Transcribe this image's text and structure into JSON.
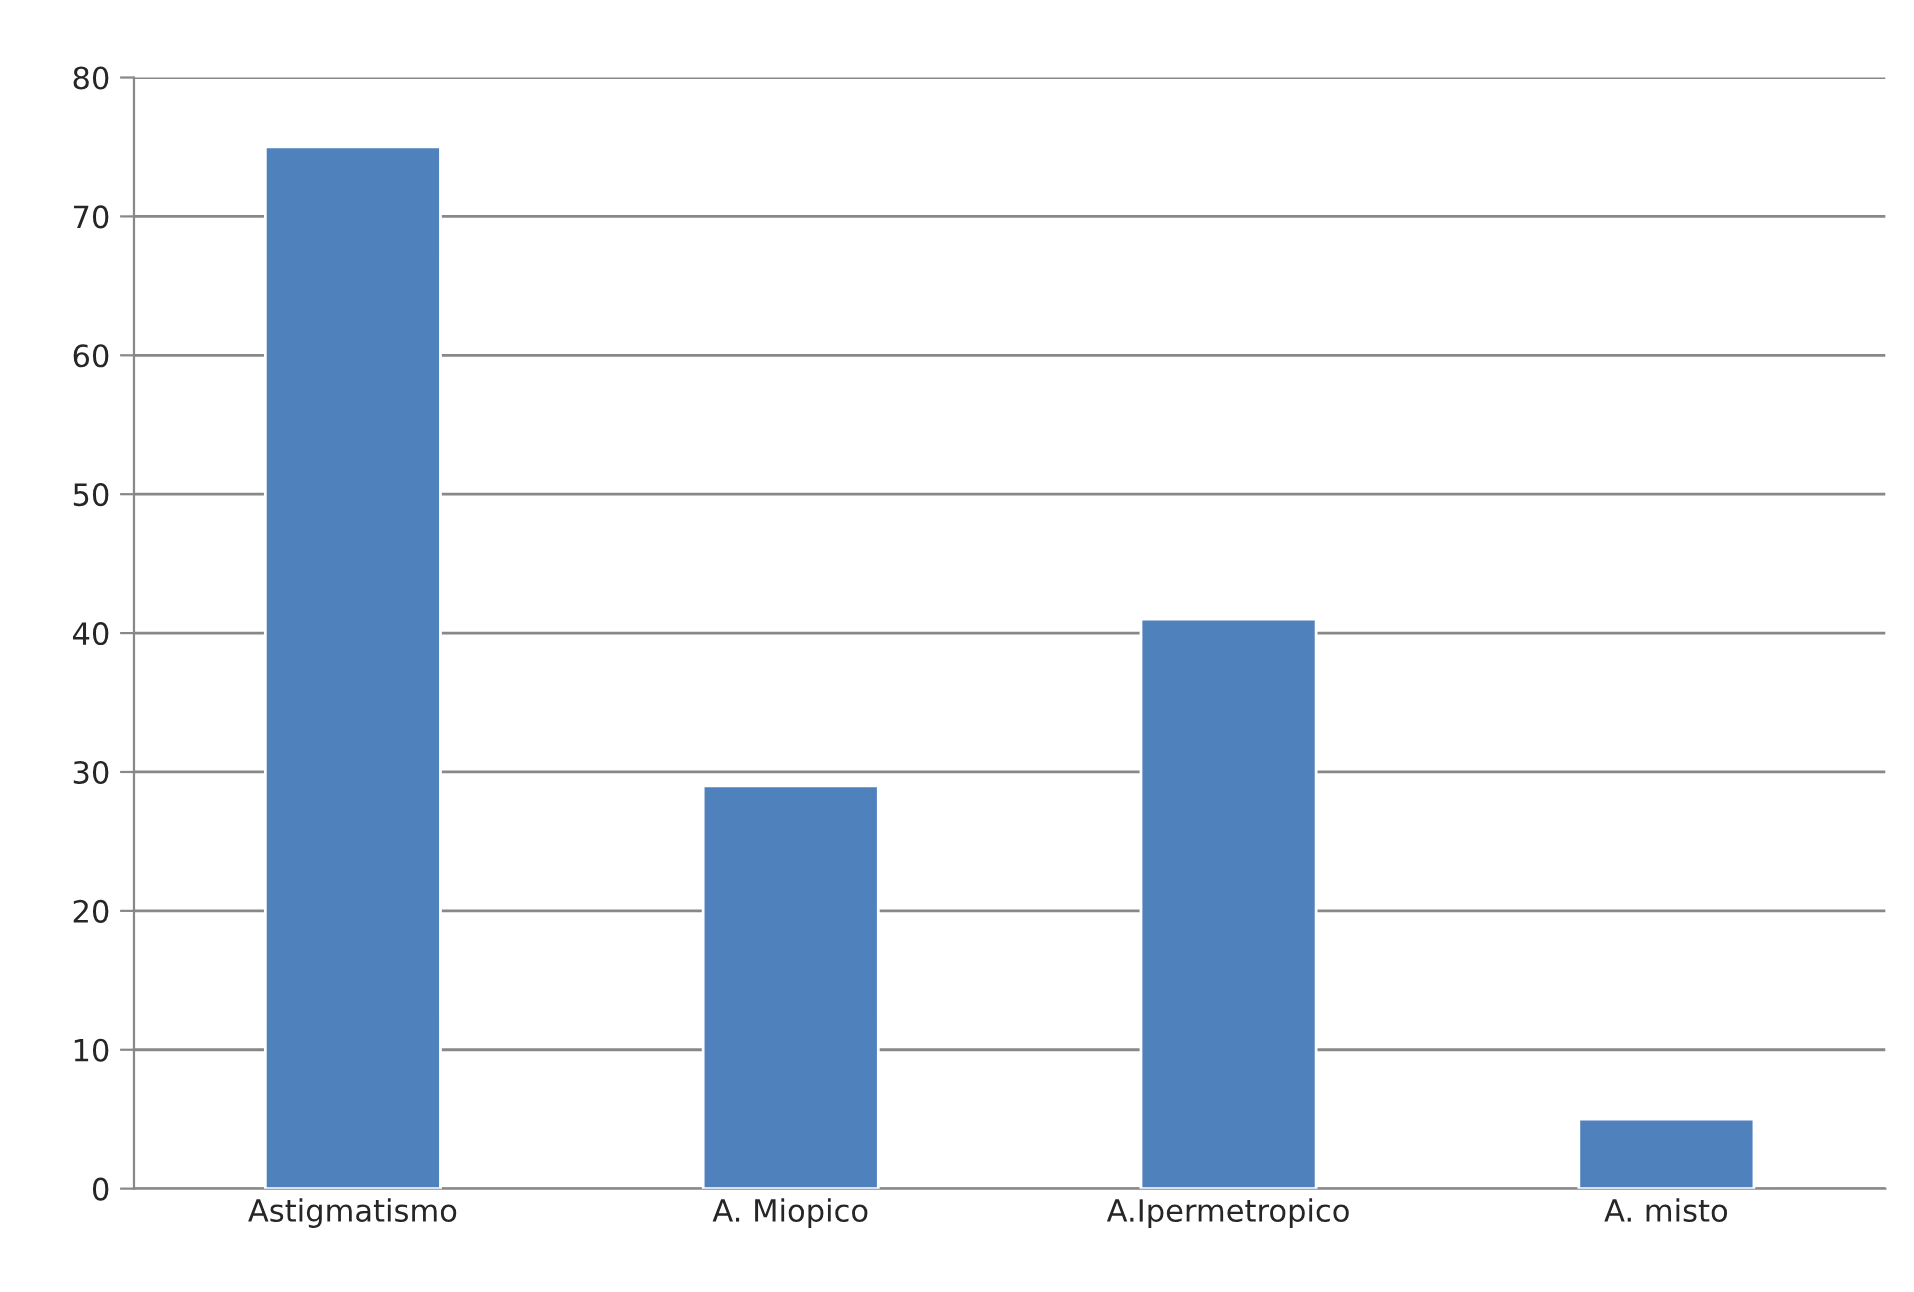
{
  "chart_data": {
    "type": "bar",
    "categories": [
      "Astigmatismo",
      "A. Miopico",
      "A.Ipermetropico",
      "A. misto"
    ],
    "values": [
      75,
      29,
      41,
      5
    ],
    "color": "#4f81bd",
    "ylim": [
      0,
      80
    ],
    "yticks": [
      0,
      10,
      20,
      30,
      40,
      50,
      60,
      70,
      80
    ],
    "grid": "y",
    "legend": false
  }
}
